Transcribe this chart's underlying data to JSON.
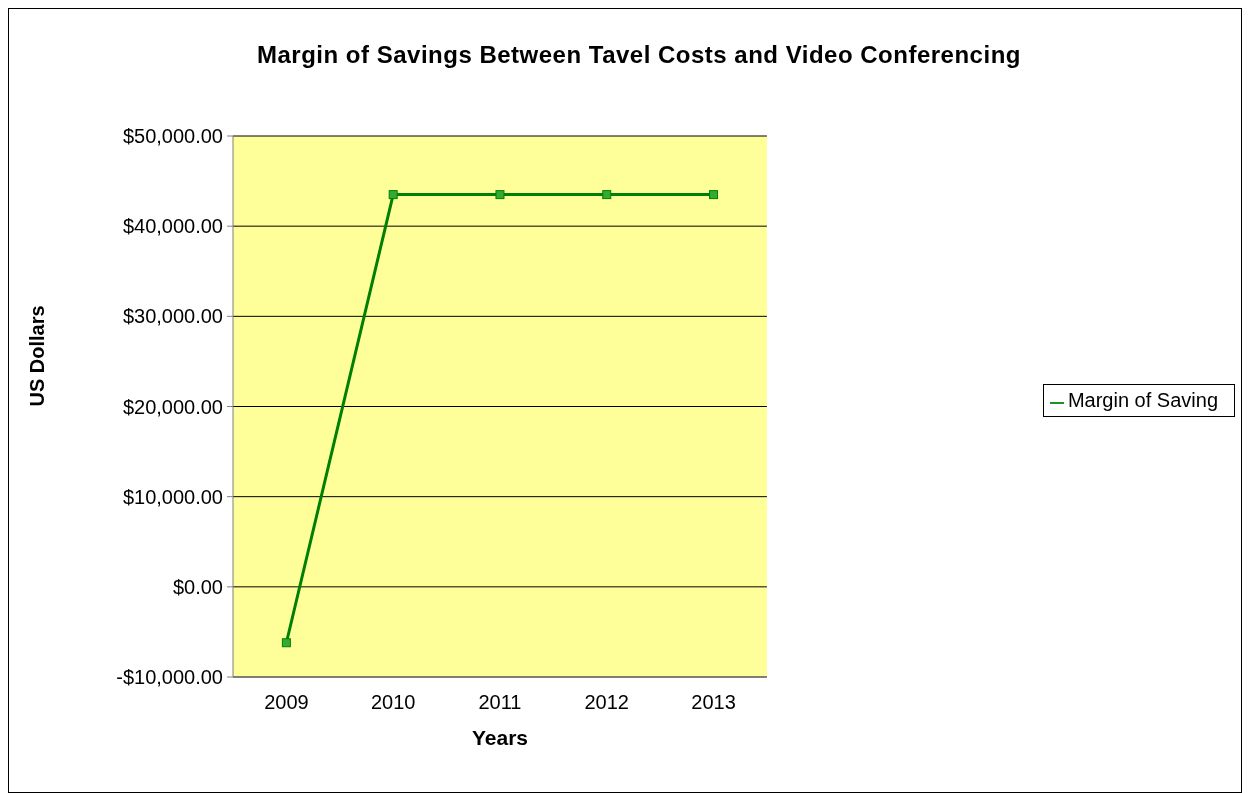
{
  "chart_data": {
    "type": "line",
    "title": "Margin of Savings Between Tavel Costs and Video Conferencing",
    "xlabel": "Years",
    "ylabel": "US Dollars",
    "categories": [
      "2009",
      "2010",
      "2011",
      "2012",
      "2013"
    ],
    "series": [
      {
        "name": "Margin of Saving",
        "color": "#008000",
        "values": [
          -6200,
          43500,
          43500,
          43500,
          43500
        ]
      }
    ],
    "ylim": [
      -10000,
      50000
    ],
    "yticks": [
      {
        "value": -10000,
        "label": "-$10,000.00"
      },
      {
        "value": 0,
        "label": "$0.00"
      },
      {
        "value": 10000,
        "label": "$10,000.00"
      },
      {
        "value": 20000,
        "label": "$20,000.00"
      },
      {
        "value": 30000,
        "label": "$30,000.00"
      },
      {
        "value": 40000,
        "label": "$40,000.00"
      },
      {
        "value": 50000,
        "label": "$50,000.00"
      }
    ],
    "grid": "y",
    "legend": "right",
    "marker": "square",
    "line_style": "solid"
  }
}
